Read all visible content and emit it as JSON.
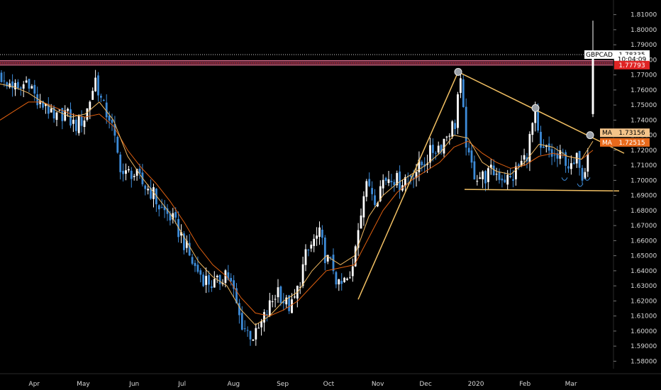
{
  "chart_data": {
    "type": "candlestick",
    "symbol": "GBPCAD",
    "ylim": [
      1.575,
      1.815
    ],
    "y_ticks": [
      "1.81000",
      "1.80000",
      "1.79000",
      "1.78000",
      "1.77000",
      "1.76000",
      "1.75000",
      "1.74000",
      "1.73000",
      "1.72000",
      "1.71000",
      "1.70000",
      "1.69000",
      "1.68000",
      "1.67000",
      "1.66000",
      "1.65000",
      "1.64000",
      "1.63000",
      "1.62000",
      "1.61000",
      "1.60000",
      "1.59000",
      "1.58000"
    ],
    "x_labels": [
      {
        "label": "Apr",
        "t": 0.065
      },
      {
        "label": "May",
        "t": 0.145
      },
      {
        "label": "Jun",
        "t": 0.228
      },
      {
        "label": "Jul",
        "t": 0.306
      },
      {
        "label": "Aug",
        "t": 0.39
      },
      {
        "label": "Sep",
        "t": 0.47
      },
      {
        "label": "Oct",
        "t": 0.545
      },
      {
        "label": "Nov",
        "t": 0.625
      },
      {
        "label": "Dec",
        "t": 0.703
      },
      {
        "label": "2020",
        "t": 0.785
      },
      {
        "label": "Feb",
        "t": 0.865
      },
      {
        "label": "Mar",
        "t": 0.94
      }
    ],
    "grid": false,
    "colors": {
      "up": "#ffffff",
      "down": "#3d8bd8",
      "ma_fast": "#f0b860",
      "ma_slow": "#e06010",
      "trendline": "#f2c063",
      "resistance_zone": "#b8456a",
      "last_price": "#e02424"
    },
    "price_points": [
      [
        0,
        1.772
      ],
      [
        8,
        1.76
      ],
      [
        15,
        1.766
      ],
      [
        25,
        1.758
      ],
      [
        40,
        1.768
      ],
      [
        55,
        1.748
      ],
      [
        65,
        1.752
      ],
      [
        75,
        1.738
      ],
      [
        90,
        1.746
      ],
      [
        105,
        1.736
      ],
      [
        120,
        1.742
      ],
      [
        135,
        1.768
      ],
      [
        145,
        1.748
      ],
      [
        155,
        1.742
      ],
      [
        165,
        1.718
      ],
      [
        175,
        1.702
      ],
      [
        185,
        1.706
      ],
      [
        200,
        1.698
      ],
      [
        215,
        1.692
      ],
      [
        225,
        1.682
      ],
      [
        240,
        1.676
      ],
      [
        255,
        1.664
      ],
      [
        265,
        1.652
      ],
      [
        275,
        1.642
      ],
      [
        290,
        1.634
      ],
      [
        305,
        1.63
      ],
      [
        318,
        1.64
      ],
      [
        328,
        1.628
      ],
      [
        338,
        1.608
      ],
      [
        348,
        1.6
      ],
      [
        360,
        1.596
      ],
      [
        372,
        1.608
      ],
      [
        382,
        1.618
      ],
      [
        392,
        1.628
      ],
      [
        402,
        1.618
      ],
      [
        412,
        1.616
      ],
      [
        420,
        1.628
      ],
      [
        430,
        1.648
      ],
      [
        440,
        1.658
      ],
      [
        450,
        1.664
      ],
      [
        460,
        1.648
      ],
      [
        470,
        1.642
      ],
      [
        478,
        1.628
      ],
      [
        488,
        1.634
      ],
      [
        495,
        1.632
      ],
      [
        502,
        1.662
      ],
      [
        512,
        1.69
      ],
      [
        520,
        1.698
      ],
      [
        530,
        1.688
      ],
      [
        540,
        1.7
      ],
      [
        552,
        1.704
      ],
      [
        562,
        1.698
      ],
      [
        572,
        1.702
      ],
      [
        585,
        1.706
      ],
      [
        598,
        1.712
      ],
      [
        610,
        1.72
      ],
      [
        622,
        1.724
      ],
      [
        634,
        1.734
      ],
      [
        642,
        1.738
      ],
      [
        648,
        1.77
      ],
      [
        654,
        1.74
      ],
      [
        660,
        1.714
      ],
      [
        670,
        1.704
      ],
      [
        682,
        1.702
      ],
      [
        695,
        1.706
      ],
      [
        710,
        1.702
      ],
      [
        720,
        1.7
      ],
      [
        730,
        1.708
      ],
      [
        742,
        1.716
      ],
      [
        754,
        1.744
      ],
      [
        762,
        1.718
      ],
      [
        772,
        1.72
      ],
      [
        784,
        1.714
      ],
      [
        796,
        1.716
      ],
      [
        806,
        1.706
      ],
      [
        816,
        1.716
      ],
      [
        822,
        1.702
      ],
      [
        828,
        1.72
      ],
      [
        834,
        1.742
      ],
      [
        836,
        1.782
      ]
    ],
    "ma_fast": [
      [
        0,
        1.764
      ],
      [
        20,
        1.762
      ],
      [
        40,
        1.758
      ],
      [
        60,
        1.752
      ],
      [
        80,
        1.746
      ],
      [
        100,
        1.742
      ],
      [
        120,
        1.744
      ],
      [
        140,
        1.752
      ],
      [
        160,
        1.74
      ],
      [
        180,
        1.716
      ],
      [
        200,
        1.702
      ],
      [
        220,
        1.69
      ],
      [
        240,
        1.678
      ],
      [
        260,
        1.662
      ],
      [
        280,
        1.646
      ],
      [
        300,
        1.636
      ],
      [
        320,
        1.63
      ],
      [
        340,
        1.614
      ],
      [
        360,
        1.604
      ],
      [
        380,
        1.61
      ],
      [
        400,
        1.62
      ],
      [
        420,
        1.626
      ],
      [
        440,
        1.64
      ],
      [
        460,
        1.65
      ],
      [
        480,
        1.644
      ],
      [
        500,
        1.65
      ],
      [
        520,
        1.676
      ],
      [
        540,
        1.69
      ],
      [
        560,
        1.698
      ],
      [
        580,
        1.704
      ],
      [
        600,
        1.71
      ],
      [
        620,
        1.718
      ],
      [
        640,
        1.73
      ],
      [
        660,
        1.728
      ],
      [
        680,
        1.712
      ],
      [
        700,
        1.706
      ],
      [
        720,
        1.704
      ],
      [
        740,
        1.712
      ],
      [
        760,
        1.724
      ],
      [
        780,
        1.722
      ],
      [
        800,
        1.716
      ],
      [
        820,
        1.714
      ],
      [
        836,
        1.726
      ]
    ],
    "ma_slow": [
      [
        0,
        1.74
      ],
      [
        20,
        1.746
      ],
      [
        40,
        1.752
      ],
      [
        60,
        1.752
      ],
      [
        80,
        1.748
      ],
      [
        100,
        1.744
      ],
      [
        120,
        1.742
      ],
      [
        140,
        1.744
      ],
      [
        160,
        1.736
      ],
      [
        180,
        1.72
      ],
      [
        200,
        1.708
      ],
      [
        220,
        1.698
      ],
      [
        240,
        1.686
      ],
      [
        260,
        1.672
      ],
      [
        280,
        1.656
      ],
      [
        300,
        1.644
      ],
      [
        320,
        1.636
      ],
      [
        340,
        1.622
      ],
      [
        360,
        1.612
      ],
      [
        380,
        1.61
      ],
      [
        400,
        1.614
      ],
      [
        420,
        1.62
      ],
      [
        440,
        1.63
      ],
      [
        460,
        1.64
      ],
      [
        480,
        1.642
      ],
      [
        500,
        1.644
      ],
      [
        520,
        1.662
      ],
      [
        540,
        1.68
      ],
      [
        560,
        1.692
      ],
      [
        580,
        1.7
      ],
      [
        600,
        1.706
      ],
      [
        620,
        1.712
      ],
      [
        640,
        1.722
      ],
      [
        660,
        1.726
      ],
      [
        680,
        1.718
      ],
      [
        700,
        1.712
      ],
      [
        720,
        1.708
      ],
      [
        740,
        1.71
      ],
      [
        760,
        1.716
      ],
      [
        780,
        1.718
      ],
      [
        800,
        1.716
      ],
      [
        820,
        1.714
      ],
      [
        836,
        1.72
      ]
    ],
    "trendlines": [
      {
        "from": [
          505,
          1.621
        ],
        "to": [
          646,
          1.772
        ]
      },
      {
        "from": [
          646,
          1.772
        ],
        "to": [
          880,
          1.718
        ]
      },
      {
        "from": [
          655,
          1.694
        ],
        "to": [
          873,
          1.693
        ]
      }
    ],
    "markers": [
      [
        646,
        1.772
      ],
      [
        755,
        1.748
      ],
      [
        832,
        1.73
      ]
    ],
    "resistance_zone": [
      1.7765,
      1.7795
    ],
    "dotted_levels": [
      1.7835,
      1.7779
    ],
    "price_tags": [
      {
        "label": "GBPCAD",
        "value": "1.78335",
        "y": 1.7835,
        "bg": "#ffffff",
        "fg": "#000000"
      },
      {
        "label": "",
        "value": "10:04:09",
        "y": 1.7805,
        "bg": "#ffffff",
        "fg": "#000000"
      },
      {
        "label": "",
        "value": "1.77793",
        "y": 1.7765,
        "bg": "#e02424",
        "fg": "#ffffff"
      },
      {
        "label": "MA",
        "value": "1.73156",
        "y": 1.7316,
        "bg": "#f4c48a",
        "fg": "#000000"
      },
      {
        "label": "MA",
        "value": "1.72515",
        "y": 1.7252,
        "bg": "#e86a1c",
        "fg": "#ffffff"
      }
    ]
  }
}
